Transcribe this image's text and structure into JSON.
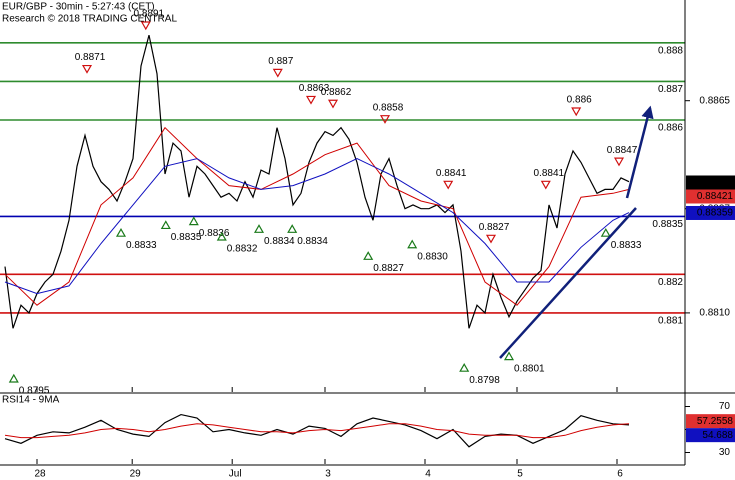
{
  "chart_data": [
    {
      "type": "line",
      "title": "EUR/GBP - 30min - 5:27:43 (CET)",
      "subtitle": "Research © 2018 TRADING CENTRAL",
      "x": [
        0,
        1,
        2,
        3,
        4,
        5,
        6,
        7,
        8,
        9,
        10,
        11,
        12,
        13,
        14,
        15,
        16,
        17,
        18,
        19,
        20,
        21,
        22,
        23,
        24,
        25,
        26,
        27,
        28,
        29,
        30,
        31,
        32,
        33,
        34,
        35,
        36,
        37,
        38,
        39,
        40,
        41,
        42,
        43,
        44,
        45,
        46,
        47,
        48,
        49,
        50,
        51,
        52,
        53,
        54,
        55,
        56,
        57,
        58,
        59,
        60,
        61,
        62,
        63,
        64,
        65,
        66,
        67,
        68,
        69,
        70,
        71,
        72,
        73,
        74,
        75,
        76,
        77,
        78
      ],
      "xlim": [
        -0.625,
        85
      ],
      "xticks": [
        {
          "value": 4,
          "label": "28"
        },
        {
          "value": 15.9,
          "label": "29"
        },
        {
          "value": 28.4,
          "label": "Jul"
        },
        {
          "value": 40,
          "label": "3"
        },
        {
          "value": 52.5,
          "label": "4"
        },
        {
          "value": 64,
          "label": "5"
        },
        {
          "value": 76.5,
          "label": "6"
        }
      ],
      "ylim": [
        0.87895,
        0.88911
      ],
      "yticks": [
        0.8892,
        0.8865,
        0.8837,
        {
          "value": 0.881,
          "label": "0.8810"
        }
      ],
      "series": [
        {
          "color": "#000000",
          "values": [
            0.8822,
            0.8806,
            0.8812,
            0.881,
            0.8815,
            0.8818,
            0.882,
            0.8826,
            0.8834,
            0.8848,
            0.8856,
            0.8848,
            0.8844,
            0.8842,
            0.8839,
            0.8844,
            0.885,
            0.8874,
            0.8882,
            0.8872,
            0.8846,
            0.8854,
            0.8852,
            0.884,
            0.8848,
            0.8846,
            0.8843,
            0.884,
            0.8841,
            0.8839,
            0.8844,
            0.884,
            0.8847,
            0.8846,
            0.8858,
            0.885,
            0.8838,
            0.8841,
            0.8849,
            0.8854,
            0.8857,
            0.8856,
            0.8858,
            0.8855,
            0.8849,
            0.884,
            0.8834,
            0.8846,
            0.885,
            0.8843,
            0.8837,
            0.8838,
            0.8837,
            0.8837,
            0.8838,
            0.8836,
            0.8838,
            0.8826,
            0.8806,
            0.8812,
            0.881,
            0.882,
            0.8814,
            0.8809,
            0.8813,
            0.8816,
            0.8819,
            0.8821,
            0.8838,
            0.8832,
            0.8846,
            0.8852,
            0.8849,
            0.8845,
            0.8841,
            0.8842,
            0.8842,
            0.8845,
            0.8844
          ]
        },
        {
          "color": "#d00000",
          "x": [
            0,
            4,
            8,
            12,
            16,
            20,
            24,
            28,
            32,
            36,
            40,
            44,
            48,
            52,
            56,
            60,
            64,
            68,
            72,
            76,
            78
          ],
          "values": [
            0.882,
            0.8812,
            0.8818,
            0.8838,
            0.8845,
            0.8858,
            0.885,
            0.8843,
            0.8842,
            0.8846,
            0.8851,
            0.8854,
            0.8843,
            0.8839,
            0.8837,
            0.8818,
            0.8812,
            0.8822,
            0.884,
            0.8841,
            0.8842
          ]
        },
        {
          "color": "#1010c0",
          "x": [
            0,
            4,
            8,
            12,
            16,
            20,
            24,
            28,
            32,
            36,
            40,
            44,
            48,
            52,
            56,
            60,
            64,
            68,
            72,
            76,
            78
          ],
          "values": [
            0.8818,
            0.8815,
            0.8817,
            0.8828,
            0.8838,
            0.8848,
            0.885,
            0.8845,
            0.8842,
            0.8843,
            0.8846,
            0.885,
            0.8846,
            0.8841,
            0.8836,
            0.8828,
            0.8818,
            0.8818,
            0.8827,
            0.8834,
            0.8836
          ]
        }
      ],
      "levels": [
        {
          "value": 0.888,
          "color": "#2e8b2e"
        },
        {
          "value": 0.887,
          "color": "#2e8b2e"
        },
        {
          "value": 0.886,
          "color": "#2e8b2e"
        },
        {
          "value": 0.8835,
          "color": "#0000b0"
        },
        {
          "value": 0.882,
          "color": "#d01010"
        },
        {
          "value": 0.881,
          "color": "#d01010"
        }
      ],
      "annotations": [
        {
          "x": 10.25,
          "value": 0.8871,
          "kind": "high"
        },
        {
          "x": 17.6,
          "value": 0.8891,
          "kind": "high"
        },
        {
          "x": 34.1,
          "value": 0.887,
          "kind": "high"
        },
        {
          "x": 38.25,
          "value": 0.8863,
          "kind": "high"
        },
        {
          "x": 41,
          "value": 0.8862,
          "kind": "high"
        },
        {
          "x": 47.5,
          "value": 0.8858,
          "kind": "high"
        },
        {
          "x": 55.4,
          "value": 0.8841,
          "kind": "high"
        },
        {
          "x": 60.75,
          "value": 0.8827,
          "kind": "high"
        },
        {
          "x": 67.6,
          "value": 0.8841,
          "kind": "high"
        },
        {
          "x": 71.4,
          "value": 0.886,
          "kind": "high"
        },
        {
          "x": 76.75,
          "value": 0.8847,
          "kind": "high"
        },
        {
          "x": 1.1,
          "value": 0.8795,
          "kind": "low"
        },
        {
          "x": 14.5,
          "value": 0.8833,
          "kind": "low"
        },
        {
          "x": 20.1,
          "value": 0.8835,
          "kind": "low"
        },
        {
          "x": 23.6,
          "value": 0.8836,
          "kind": "low"
        },
        {
          "x": 27.1,
          "value": 0.8832,
          "kind": "low"
        },
        {
          "x": 31.75,
          "value": 0.8834,
          "kind": "low"
        },
        {
          "x": 35.9,
          "value": 0.8834,
          "kind": "low"
        },
        {
          "x": 45.4,
          "value": 0.8827,
          "kind": "low"
        },
        {
          "x": 50.9,
          "value": {
            "value": 0.883,
            "label": "0.8830"
          },
          "kind": "low"
        },
        {
          "x": 57.4,
          "value": 0.8798,
          "kind": "low"
        },
        {
          "x": 63,
          "value": 0.8801,
          "kind": "low"
        },
        {
          "x": 75.1,
          "value": 0.8833,
          "kind": "low"
        }
      ],
      "price_tags": [
        {
          "value": 0.88438,
          "color": "#000000"
        },
        {
          "value": 0.88421,
          "color": "#e03030"
        },
        {
          "value": 0.88359,
          "color": "#1010c0"
        }
      ]
    },
    {
      "type": "line",
      "title": "RSI14 - 9MA",
      "x": [
        0,
        2,
        4,
        6,
        8,
        10,
        12,
        14,
        16,
        18,
        20,
        22,
        24,
        26,
        28,
        30,
        32,
        34,
        36,
        38,
        40,
        42,
        44,
        46,
        48,
        50,
        52,
        54,
        56,
        58,
        60,
        62,
        64,
        66,
        68,
        70,
        72,
        74,
        76,
        78
      ],
      "xlim": [
        -0.625,
        85
      ],
      "ylim": [
        20,
        80
      ],
      "yticks": [
        30,
        50,
        70
      ],
      "series": [
        {
          "color": "#000000",
          "values": [
            42,
            38,
            45,
            48,
            47,
            52,
            58,
            50,
            46,
            44,
            56,
            63,
            60,
            48,
            50,
            47,
            45,
            50,
            46,
            53,
            51,
            44,
            55,
            60,
            57,
            54,
            49,
            42,
            50,
            35,
            44,
            46,
            45,
            38,
            44,
            50,
            62,
            58,
            55,
            54
          ]
        },
        {
          "color": "#d00000",
          "values": [
            45,
            43,
            43,
            44,
            45,
            47,
            50,
            51,
            50,
            48,
            50,
            53,
            55,
            54,
            52,
            50,
            48,
            48,
            47,
            49,
            50,
            49,
            51,
            53,
            55,
            55,
            53,
            50,
            49,
            46,
            45,
            45,
            45,
            43,
            43,
            45,
            49,
            52,
            54,
            55
          ]
        }
      ],
      "price_tags": [
        {
          "value": 57.2558,
          "color": "#e03030"
        },
        {
          "value": 54.688,
          "color": "#1010c0"
        }
      ]
    }
  ]
}
